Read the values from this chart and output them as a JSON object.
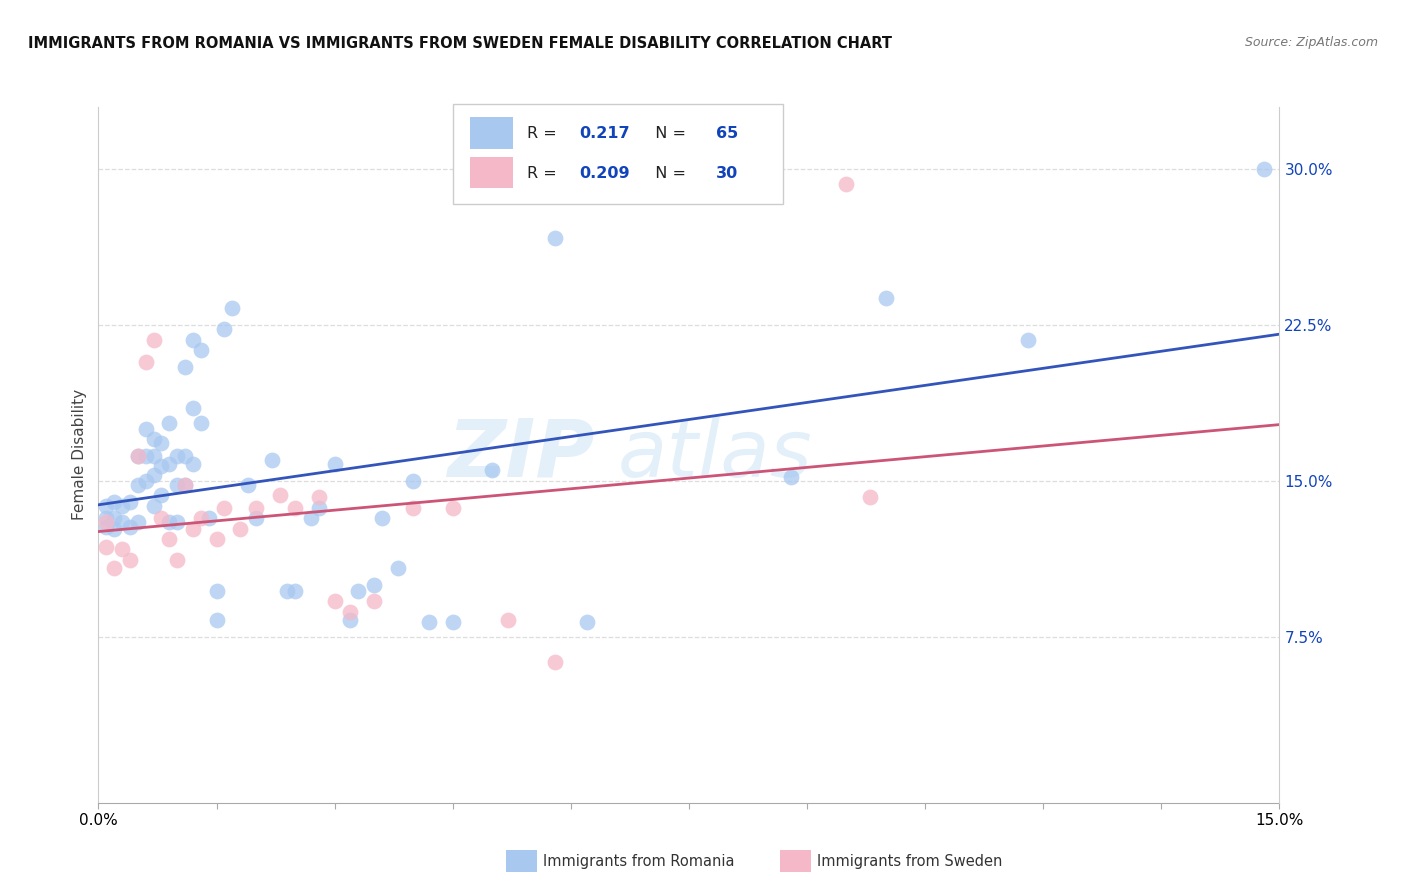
{
  "title": "IMMIGRANTS FROM ROMANIA VS IMMIGRANTS FROM SWEDEN FEMALE DISABILITY CORRELATION CHART",
  "source": "Source: ZipAtlas.com",
  "ylabel": "Female Disability",
  "xlim": [
    0.0,
    0.15
  ],
  "ylim": [
    -0.005,
    0.33
  ],
  "right_yticks": [
    0.075,
    0.15,
    0.225,
    0.3
  ],
  "right_yticklabels": [
    "7.5%",
    "15.0%",
    "22.5%",
    "30.0%"
  ],
  "romania_color": "#a8c8f0",
  "sweden_color": "#f5b8c8",
  "romania_R": 0.217,
  "romania_N": 65,
  "sweden_R": 0.209,
  "sweden_N": 30,
  "romania_line_color": "#3355bb",
  "sweden_line_color": "#cc5577",
  "legend_R_color": "#1144bb",
  "romania_x": [
    0.001,
    0.001,
    0.001,
    0.002,
    0.002,
    0.002,
    0.003,
    0.003,
    0.004,
    0.004,
    0.005,
    0.005,
    0.005,
    0.006,
    0.006,
    0.006,
    0.007,
    0.007,
    0.007,
    0.007,
    0.008,
    0.008,
    0.008,
    0.009,
    0.009,
    0.009,
    0.01,
    0.01,
    0.01,
    0.011,
    0.011,
    0.011,
    0.012,
    0.012,
    0.012,
    0.013,
    0.013,
    0.014,
    0.015,
    0.015,
    0.016,
    0.017,
    0.019,
    0.02,
    0.022,
    0.024,
    0.025,
    0.027,
    0.028,
    0.03,
    0.032,
    0.033,
    0.035,
    0.036,
    0.038,
    0.04,
    0.042,
    0.045,
    0.05,
    0.058,
    0.062,
    0.088,
    0.1,
    0.118,
    0.148
  ],
  "romania_y": [
    0.128,
    0.132,
    0.138,
    0.127,
    0.132,
    0.14,
    0.13,
    0.138,
    0.128,
    0.14,
    0.13,
    0.148,
    0.162,
    0.15,
    0.162,
    0.175,
    0.138,
    0.153,
    0.162,
    0.17,
    0.143,
    0.157,
    0.168,
    0.13,
    0.158,
    0.178,
    0.13,
    0.148,
    0.162,
    0.148,
    0.162,
    0.205,
    0.158,
    0.185,
    0.218,
    0.178,
    0.213,
    0.132,
    0.083,
    0.097,
    0.223,
    0.233,
    0.148,
    0.132,
    0.16,
    0.097,
    0.097,
    0.132,
    0.137,
    0.158,
    0.083,
    0.097,
    0.1,
    0.132,
    0.108,
    0.15,
    0.082,
    0.082,
    0.155,
    0.267,
    0.082,
    0.152,
    0.238,
    0.218,
    0.3
  ],
  "sweden_x": [
    0.001,
    0.001,
    0.002,
    0.003,
    0.004,
    0.005,
    0.006,
    0.007,
    0.008,
    0.009,
    0.01,
    0.011,
    0.012,
    0.013,
    0.015,
    0.016,
    0.018,
    0.02,
    0.023,
    0.025,
    0.028,
    0.03,
    0.032,
    0.035,
    0.04,
    0.045,
    0.052,
    0.058,
    0.095,
    0.098
  ],
  "sweden_y": [
    0.118,
    0.13,
    0.108,
    0.117,
    0.112,
    0.162,
    0.207,
    0.218,
    0.132,
    0.122,
    0.112,
    0.148,
    0.127,
    0.132,
    0.122,
    0.137,
    0.127,
    0.137,
    0.143,
    0.137,
    0.142,
    0.092,
    0.087,
    0.092,
    0.137,
    0.137,
    0.083,
    0.063,
    0.293,
    0.142
  ],
  "background_color": "#ffffff",
  "grid_color": "#dddddd",
  "tick_color": "#1144bb"
}
